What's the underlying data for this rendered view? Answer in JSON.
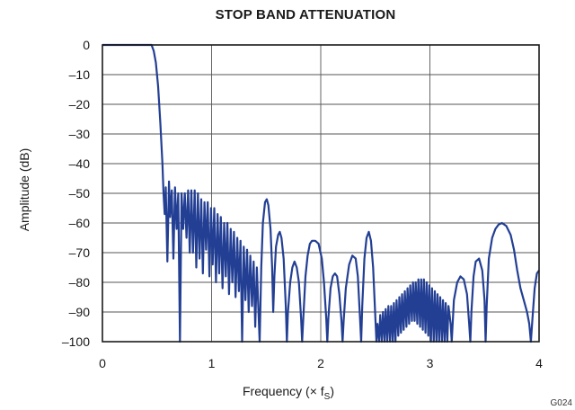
{
  "chart_data": {
    "type": "line",
    "title": "STOP BAND ATTENUATION",
    "xlabel_prefix": "Frequency (× f",
    "xlabel_sub": "S",
    "xlabel_suffix": ")",
    "ylabel": "Amplitude (dB)",
    "figure_code": "G024",
    "xlim": [
      0,
      4
    ],
    "ylim": [
      -100,
      0
    ],
    "x_ticks": [
      0,
      1,
      2,
      3,
      4
    ],
    "y_ticks": [
      0,
      -10,
      -20,
      -30,
      -40,
      -50,
      -60,
      -70,
      -80,
      -90,
      -100
    ],
    "x_tick_labels": [
      "0",
      "1",
      "2",
      "3",
      "4"
    ],
    "y_tick_labels": [
      "0",
      "–10",
      "–20",
      "–30",
      "–40",
      "–50",
      "–60",
      "–70",
      "–80",
      "–90",
      "–100"
    ],
    "grid": true,
    "line_color": "#233f94",
    "series": [
      {
        "points": [
          [
            0.0,
            0.0
          ],
          [
            0.4,
            0.0
          ],
          [
            0.45,
            0.0
          ],
          [
            0.47,
            -2
          ],
          [
            0.49,
            -6
          ],
          [
            0.51,
            -14
          ],
          [
            0.53,
            -26
          ],
          [
            0.55,
            -40
          ],
          [
            0.56,
            -50
          ],
          [
            0.57,
            -57
          ],
          [
            0.58,
            -48
          ],
          [
            0.595,
            -73
          ],
          [
            0.61,
            -46
          ],
          [
            0.62,
            -58
          ],
          [
            0.635,
            -49
          ],
          [
            0.65,
            -72
          ],
          [
            0.665,
            -48
          ],
          [
            0.68,
            -62
          ],
          [
            0.695,
            -50
          ],
          [
            0.71,
            -100
          ],
          [
            0.725,
            -50
          ],
          [
            0.74,
            -62
          ],
          [
            0.755,
            -50
          ],
          [
            0.77,
            -65
          ],
          [
            0.785,
            -49
          ],
          [
            0.8,
            -70
          ],
          [
            0.815,
            -49
          ],
          [
            0.83,
            -70
          ],
          [
            0.845,
            -49
          ],
          [
            0.86,
            -75
          ],
          [
            0.875,
            -50
          ],
          [
            0.89,
            -72
          ],
          [
            0.905,
            -52
          ],
          [
            0.92,
            -77
          ],
          [
            0.935,
            -53
          ],
          [
            0.95,
            -69
          ],
          [
            0.965,
            -53
          ],
          [
            0.98,
            -78
          ],
          [
            0.995,
            -55
          ],
          [
            1.01,
            -74
          ],
          [
            1.025,
            -55
          ],
          [
            1.04,
            -80
          ],
          [
            1.055,
            -57
          ],
          [
            1.07,
            -77
          ],
          [
            1.085,
            -58
          ],
          [
            1.1,
            -82
          ],
          [
            1.115,
            -60
          ],
          [
            1.13,
            -78
          ],
          [
            1.145,
            -60
          ],
          [
            1.16,
            -84
          ],
          [
            1.175,
            -62
          ],
          [
            1.19,
            -80
          ],
          [
            1.205,
            -63
          ],
          [
            1.22,
            -85
          ],
          [
            1.235,
            -65
          ],
          [
            1.25,
            -83
          ],
          [
            1.265,
            -66
          ],
          [
            1.28,
            -100
          ],
          [
            1.295,
            -68
          ],
          [
            1.31,
            -86
          ],
          [
            1.325,
            -69
          ],
          [
            1.34,
            -90
          ],
          [
            1.355,
            -71
          ],
          [
            1.37,
            -88
          ],
          [
            1.385,
            -73
          ],
          [
            1.4,
            -95
          ],
          [
            1.415,
            -75
          ],
          [
            1.43,
            -90
          ],
          [
            1.44,
            -100
          ],
          [
            1.455,
            -75
          ],
          [
            1.47,
            -60
          ],
          [
            1.49,
            -53
          ],
          [
            1.505,
            -52
          ],
          [
            1.52,
            -54
          ],
          [
            1.54,
            -62
          ],
          [
            1.555,
            -75
          ],
          [
            1.565,
            -90
          ],
          [
            1.575,
            -78
          ],
          [
            1.59,
            -68
          ],
          [
            1.61,
            -64
          ],
          [
            1.625,
            -63
          ],
          [
            1.64,
            -65
          ],
          [
            1.66,
            -72
          ],
          [
            1.68,
            -88
          ],
          [
            1.69,
            -100
          ],
          [
            1.7,
            -90
          ],
          [
            1.72,
            -80
          ],
          [
            1.74,
            -75
          ],
          [
            1.76,
            -73
          ],
          [
            1.78,
            -75
          ],
          [
            1.8,
            -80
          ],
          [
            1.82,
            -92
          ],
          [
            1.83,
            -100
          ],
          [
            1.84,
            -92
          ],
          [
            1.86,
            -78
          ],
          [
            1.88,
            -71
          ],
          [
            1.9,
            -67
          ],
          [
            1.92,
            -66
          ],
          [
            1.95,
            -66
          ],
          [
            1.98,
            -67
          ],
          [
            2.01,
            -72
          ],
          [
            2.03,
            -80
          ],
          [
            2.05,
            -92
          ],
          [
            2.06,
            -100
          ],
          [
            2.07,
            -92
          ],
          [
            2.09,
            -82
          ],
          [
            2.11,
            -78
          ],
          [
            2.13,
            -77
          ],
          [
            2.15,
            -78
          ],
          [
            2.17,
            -84
          ],
          [
            2.19,
            -93
          ],
          [
            2.2,
            -100
          ],
          [
            2.21,
            -93
          ],
          [
            2.23,
            -82
          ],
          [
            2.26,
            -74
          ],
          [
            2.29,
            -71
          ],
          [
            2.32,
            -72
          ],
          [
            2.34,
            -78
          ],
          [
            2.36,
            -92
          ],
          [
            2.37,
            -100
          ],
          [
            2.38,
            -88
          ],
          [
            2.4,
            -72
          ],
          [
            2.42,
            -65
          ],
          [
            2.44,
            -63
          ],
          [
            2.46,
            -66
          ],
          [
            2.48,
            -75
          ],
          [
            2.5,
            -92
          ],
          [
            2.51,
            -100
          ],
          [
            2.52,
            -94
          ],
          [
            2.535,
            -100
          ],
          [
            2.545,
            -91
          ],
          [
            2.56,
            -100
          ],
          [
            2.57,
            -90
          ],
          [
            2.585,
            -100
          ],
          [
            2.595,
            -89
          ],
          [
            2.61,
            -100
          ],
          [
            2.62,
            -88
          ],
          [
            2.635,
            -100
          ],
          [
            2.645,
            -88
          ],
          [
            2.66,
            -100
          ],
          [
            2.67,
            -87
          ],
          [
            2.685,
            -100
          ],
          [
            2.695,
            -86
          ],
          [
            2.71,
            -98
          ],
          [
            2.72,
            -85
          ],
          [
            2.735,
            -97
          ],
          [
            2.745,
            -84
          ],
          [
            2.76,
            -96
          ],
          [
            2.77,
            -83
          ],
          [
            2.785,
            -95
          ],
          [
            2.795,
            -82
          ],
          [
            2.81,
            -94
          ],
          [
            2.82,
            -81
          ],
          [
            2.835,
            -93
          ],
          [
            2.845,
            -80
          ],
          [
            2.86,
            -93
          ],
          [
            2.87,
            -80
          ],
          [
            2.885,
            -94
          ],
          [
            2.895,
            -79
          ],
          [
            2.91,
            -95
          ],
          [
            2.92,
            -79
          ],
          [
            2.935,
            -96
          ],
          [
            2.945,
            -79
          ],
          [
            2.96,
            -97
          ],
          [
            2.97,
            -80
          ],
          [
            2.985,
            -98
          ],
          [
            2.995,
            -81
          ],
          [
            3.01,
            -100
          ],
          [
            3.02,
            -82
          ],
          [
            3.035,
            -100
          ],
          [
            3.045,
            -83
          ],
          [
            3.06,
            -100
          ],
          [
            3.07,
            -84
          ],
          [
            3.085,
            -100
          ],
          [
            3.095,
            -85
          ],
          [
            3.11,
            -100
          ],
          [
            3.12,
            -86
          ],
          [
            3.135,
            -100
          ],
          [
            3.145,
            -87
          ],
          [
            3.16,
            -100
          ],
          [
            3.17,
            -88
          ],
          [
            3.19,
            -94
          ],
          [
            3.2,
            -100
          ],
          [
            3.22,
            -86
          ],
          [
            3.25,
            -80
          ],
          [
            3.28,
            -78
          ],
          [
            3.31,
            -79
          ],
          [
            3.34,
            -84
          ],
          [
            3.36,
            -94
          ],
          [
            3.37,
            -100
          ],
          [
            3.38,
            -90
          ],
          [
            3.4,
            -78
          ],
          [
            3.42,
            -73
          ],
          [
            3.45,
            -72
          ],
          [
            3.48,
            -76
          ],
          [
            3.5,
            -86
          ],
          [
            3.51,
            -100
          ],
          [
            3.52,
            -88
          ],
          [
            3.54,
            -72
          ],
          [
            3.57,
            -65
          ],
          [
            3.6,
            -62
          ],
          [
            3.63,
            -60.5
          ],
          [
            3.66,
            -60
          ],
          [
            3.7,
            -61
          ],
          [
            3.74,
            -64
          ],
          [
            3.77,
            -69
          ],
          [
            3.8,
            -76
          ],
          [
            3.83,
            -82
          ],
          [
            3.86,
            -86
          ],
          [
            3.89,
            -90
          ],
          [
            3.91,
            -94
          ],
          [
            3.925,
            -100
          ],
          [
            3.94,
            -92
          ],
          [
            3.96,
            -82
          ],
          [
            3.98,
            -77
          ],
          [
            4.0,
            -76
          ]
        ]
      }
    ]
  }
}
